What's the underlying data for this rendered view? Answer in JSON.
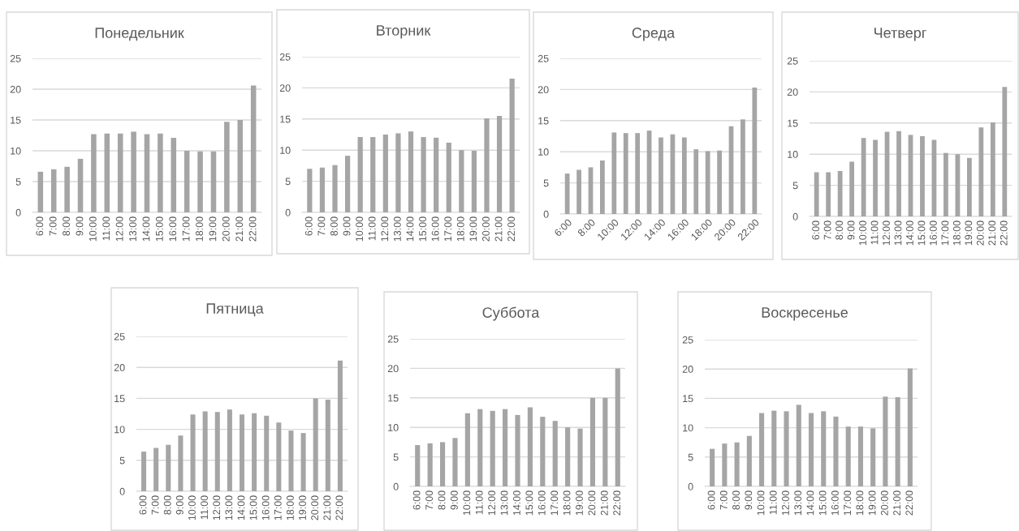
{
  "chart_data": [
    {
      "type": "bar",
      "title": "Понедельник",
      "categories": [
        "6:00",
        "7:00",
        "8:00",
        "9:00",
        "10:00",
        "11:00",
        "12:00",
        "13:00",
        "14:00",
        "15:00",
        "16:00",
        "17:00",
        "18:00",
        "19:00",
        "20:00",
        "21:00",
        "22:00"
      ],
      "values": [
        6.6,
        7.0,
        7.4,
        8.7,
        12.7,
        12.8,
        12.8,
        13.1,
        12.7,
        12.8,
        12.1,
        10.0,
        9.9,
        9.9,
        14.7,
        15.0,
        20.6
      ],
      "color": "#a5a5a5",
      "ylim": [
        0,
        25
      ],
      "yticks": [
        0,
        5,
        10,
        15,
        20,
        25
      ],
      "grid": "y"
    },
    {
      "type": "bar",
      "title": "Вторник",
      "categories": [
        "6:00",
        "7:00",
        "8:00",
        "9:00",
        "10:00",
        "11:00",
        "12:00",
        "13:00",
        "14:00",
        "15:00",
        "16:00",
        "17:00",
        "18:00",
        "19:00",
        "20:00",
        "21:00",
        "22:00"
      ],
      "values": [
        7.0,
        7.2,
        7.6,
        9.1,
        12.1,
        12.1,
        12.5,
        12.7,
        13.0,
        12.1,
        12.0,
        11.2,
        10.0,
        9.9,
        15.1,
        15.5,
        21.5
      ],
      "color": "#a5a5a5",
      "ylim": [
        0,
        25
      ],
      "yticks": [
        0,
        5,
        10,
        15,
        20,
        25
      ],
      "grid": "y"
    },
    {
      "type": "bar",
      "title": "Среда",
      "categories": [
        "6:00",
        null,
        "8:00",
        null,
        "10:00",
        null,
        "12:00",
        null,
        "14:00",
        null,
        "16:00",
        null,
        "18:00",
        null,
        "20:00",
        null,
        "22:00"
      ],
      "values": [
        6.5,
        7.1,
        7.5,
        8.6,
        13.1,
        13.0,
        13.0,
        13.4,
        12.3,
        12.8,
        12.3,
        10.4,
        10.1,
        10.2,
        14.1,
        15.2,
        20.3
      ],
      "color": "#a5a5a5",
      "ylim": [
        0,
        25
      ],
      "yticks": [
        0,
        5,
        10,
        15,
        20,
        25
      ],
      "grid": "y"
    },
    {
      "type": "bar",
      "title": "Четверг",
      "categories": [
        "6:00",
        "7:00",
        "8:00",
        "9:00",
        "10:00",
        "11:00",
        "12:00",
        "13:00",
        "14:00",
        "15:00",
        "16:00",
        "17:00",
        "18:00",
        "19:00",
        "20:00",
        "21:00",
        "22:00"
      ],
      "values": [
        7.1,
        7.1,
        7.3,
        8.8,
        12.6,
        12.3,
        13.6,
        13.7,
        13.1,
        12.9,
        12.3,
        10.2,
        10.0,
        9.4,
        14.3,
        15.1,
        20.8
      ],
      "color": "#a5a5a5",
      "ylim": [
        0,
        25
      ],
      "yticks": [
        0,
        5,
        10,
        15,
        20,
        25
      ],
      "grid": "y"
    },
    {
      "type": "bar",
      "title": "Пятница",
      "categories": [
        "6:00",
        "7:00",
        "8:00",
        "9:00",
        "10:00",
        "11:00",
        "12:00",
        "13:00",
        "14:00",
        "15:00",
        "16:00",
        "17:00",
        "18:00",
        "19:00",
        "20:00",
        "21:00",
        "22:00"
      ],
      "values": [
        6.4,
        7.0,
        7.5,
        9.0,
        12.4,
        12.9,
        12.8,
        13.2,
        12.4,
        12.6,
        12.2,
        11.1,
        9.8,
        9.4,
        15.0,
        14.8,
        21.1
      ],
      "color": "#a5a5a5",
      "ylim": [
        0,
        25
      ],
      "yticks": [
        0,
        5,
        10,
        15,
        20,
        25
      ],
      "grid": "y"
    },
    {
      "type": "bar",
      "title": "Суббота",
      "categories": [
        "6:00",
        "7:00",
        "8:00",
        "9:00",
        "10:00",
        "11:00",
        "12:00",
        "13:00",
        "14:00",
        "15:00",
        "16:00",
        "17:00",
        "18:00",
        "19:00",
        "20:00",
        "21:00",
        "22:00"
      ],
      "values": [
        7.0,
        7.3,
        7.5,
        8.2,
        12.4,
        13.1,
        12.8,
        13.1,
        12.1,
        13.4,
        11.8,
        11.1,
        10.0,
        9.8,
        15.0,
        15.0,
        20.0
      ],
      "color": "#a5a5a5",
      "ylim": [
        0,
        25
      ],
      "yticks": [
        0,
        5,
        10,
        15,
        20,
        25
      ],
      "grid": "y"
    },
    {
      "type": "bar",
      "title": "Воскресенье",
      "categories": [
        "6:00",
        "7:00",
        "8:00",
        "9:00",
        "10:00",
        "11:00",
        "12:00",
        "13:00",
        "14:00",
        "15:00",
        "16:00",
        "17:00",
        "18:00",
        "19:00",
        "20:00",
        "21:00",
        "22:00"
      ],
      "values": [
        6.4,
        7.3,
        7.5,
        8.6,
        12.5,
        12.9,
        12.8,
        13.9,
        12.5,
        12.8,
        11.9,
        10.2,
        10.2,
        9.9,
        15.3,
        15.2,
        20.1
      ],
      "color": "#a5a5a5",
      "ylim": [
        0,
        25
      ],
      "yticks": [
        0,
        5,
        10,
        15,
        20,
        25
      ],
      "grid": "y"
    }
  ]
}
